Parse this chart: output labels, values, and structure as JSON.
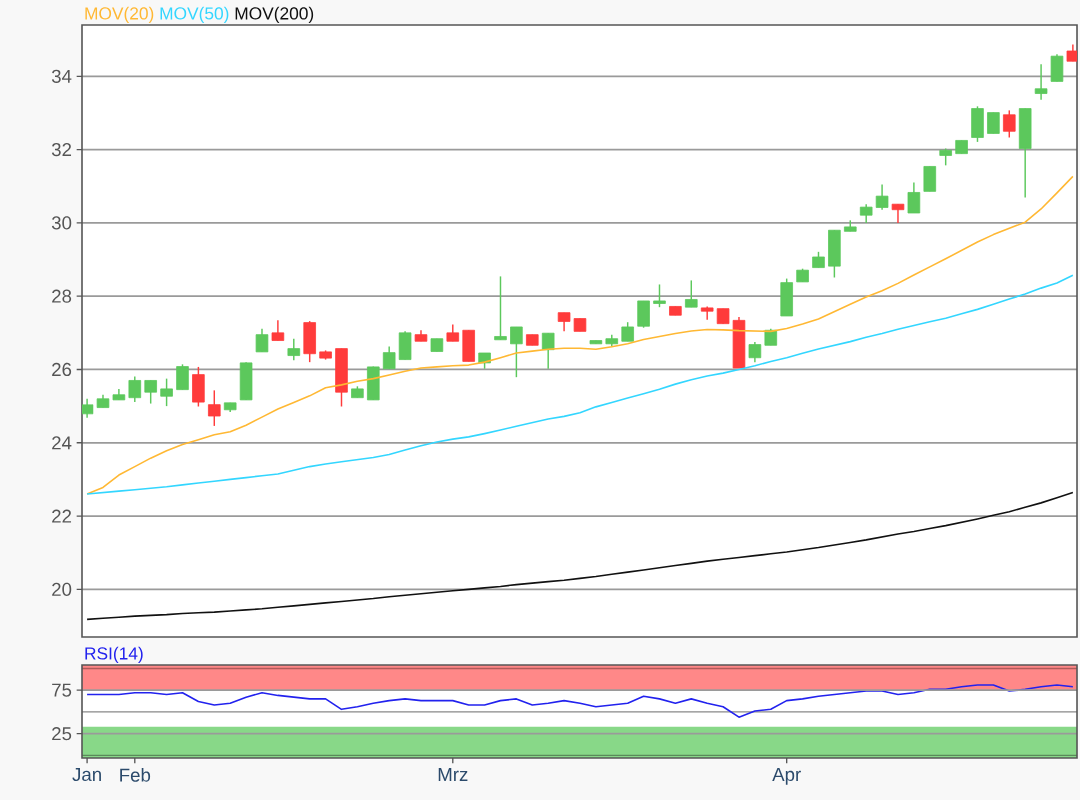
{
  "chart_data": [
    {
      "type": "candlestick",
      "categories": [
        null,
        null,
        null,
        null,
        null,
        null,
        null,
        null,
        null,
        null,
        null,
        null,
        null,
        null,
        null,
        null,
        null,
        null,
        null,
        null,
        null,
        null,
        null,
        null,
        null,
        null,
        null,
        null,
        null,
        null,
        null,
        null,
        null,
        null,
        null,
        null,
        null,
        null,
        null,
        null,
        null,
        null,
        null,
        null,
        null,
        null,
        null,
        null,
        null,
        null,
        null,
        null,
        null,
        null,
        null,
        null,
        null,
        null,
        null,
        null,
        null,
        null,
        null
      ],
      "series": [
        {
          "type": "candlestick",
          "ohlc": [
            [
              24.79,
              25.2,
              24.68,
              25.04
            ],
            [
              24.96,
              25.31,
              24.96,
              25.2
            ],
            [
              25.17,
              25.47,
              25.17,
              25.31
            ],
            [
              25.23,
              25.81,
              25.11,
              25.7
            ],
            [
              25.38,
              25.7,
              25.07,
              25.7
            ],
            [
              25.27,
              25.75,
              25.0,
              25.47
            ],
            [
              25.45,
              26.14,
              25.45,
              26.08
            ],
            [
              25.86,
              26.07,
              24.99,
              25.11
            ],
            [
              25.04,
              25.43,
              24.46,
              24.73
            ],
            [
              24.9,
              25.09,
              24.84,
              25.09
            ],
            [
              25.17,
              26.2,
              25.17,
              26.18
            ],
            [
              26.48,
              27.11,
              26.48,
              26.95
            ],
            [
              27.0,
              27.34,
              26.79,
              26.79
            ],
            [
              26.38,
              26.84,
              26.25,
              26.57
            ],
            [
              27.28,
              27.32,
              26.2,
              26.43
            ],
            [
              26.48,
              26.52,
              26.27,
              26.31
            ],
            [
              26.57,
              26.57,
              24.99,
              25.38
            ],
            [
              25.23,
              25.54,
              25.23,
              25.47
            ],
            [
              25.17,
              26.08,
              25.17,
              26.07
            ],
            [
              26.02,
              26.63,
              26.02,
              26.46
            ],
            [
              26.27,
              27.04,
              26.27,
              27.0
            ],
            [
              26.95,
              27.07,
              26.77,
              26.77
            ],
            [
              26.49,
              26.84,
              26.49,
              26.84
            ],
            [
              27.0,
              27.23,
              26.77,
              26.77
            ],
            [
              27.07,
              27.07,
              26.22,
              26.22
            ],
            [
              26.18,
              26.45,
              26.02,
              26.45
            ],
            [
              26.81,
              28.54,
              26.81,
              26.9
            ],
            [
              26.7,
              27.16,
              25.79,
              27.16
            ],
            [
              26.95,
              26.95,
              26.66,
              26.66
            ],
            [
              26.54,
              26.99,
              26.02,
              26.99
            ],
            [
              27.55,
              27.55,
              27.04,
              27.31
            ],
            [
              27.39,
              27.39,
              27.04,
              27.04
            ],
            [
              26.7,
              26.79,
              26.7,
              26.79
            ],
            [
              26.7,
              26.95,
              26.63,
              26.84
            ],
            [
              26.77,
              27.29,
              26.77,
              27.16
            ],
            [
              27.18,
              27.87,
              27.14,
              27.87
            ],
            [
              27.8,
              28.32,
              27.7,
              27.87
            ],
            [
              27.72,
              27.72,
              27.48,
              27.48
            ],
            [
              27.7,
              28.43,
              27.7,
              27.91
            ],
            [
              27.68,
              27.72,
              27.36,
              27.59
            ],
            [
              27.66,
              27.66,
              27.25,
              27.25
            ],
            [
              27.34,
              27.43,
              26.04,
              26.04
            ],
            [
              26.32,
              26.75,
              26.2,
              26.68
            ],
            [
              26.66,
              27.11,
              26.66,
              27.07
            ],
            [
              27.46,
              28.48,
              27.46,
              28.37
            ],
            [
              28.39,
              28.75,
              28.39,
              28.71
            ],
            [
              28.78,
              29.21,
              28.78,
              29.07
            ],
            [
              28.82,
              29.8,
              28.51,
              29.8
            ],
            [
              29.77,
              30.07,
              29.77,
              29.89
            ],
            [
              30.21,
              30.51,
              30.0,
              30.43
            ],
            [
              30.42,
              31.05,
              30.36,
              30.73
            ],
            [
              30.51,
              30.51,
              30.0,
              30.36
            ],
            [
              30.27,
              31.1,
              30.27,
              30.83
            ],
            [
              30.86,
              31.54,
              30.86,
              31.54
            ],
            [
              31.84,
              32.03,
              31.57,
              31.98
            ],
            [
              31.89,
              32.25,
              31.89,
              32.25
            ],
            [
              32.33,
              33.18,
              32.21,
              33.12
            ],
            [
              32.44,
              33.01,
              32.44,
              33.01
            ],
            [
              32.95,
              33.07,
              32.33,
              32.5
            ],
            [
              32.03,
              33.12,
              30.69,
              33.12
            ],
            [
              33.53,
              34.33,
              33.36,
              33.66
            ],
            [
              33.86,
              34.6,
              33.86,
              34.55
            ],
            [
              34.69,
              34.87,
              34.41,
              34.41
            ]
          ],
          "colors": [
            "#5cc85c",
            "#5cc85c",
            "#5cc85c",
            "#5cc85c",
            "#5cc85c",
            "#5cc85c",
            "#5cc85c",
            "#ff3b3b",
            "#ff3b3b",
            "#5cc85c",
            "#5cc85c",
            "#5cc85c",
            "#ff3b3b",
            "#5cc85c",
            "#ff3b3b",
            "#ff3b3b",
            "#ff3b3b",
            "#5cc85c",
            "#5cc85c",
            "#5cc85c",
            "#5cc85c",
            "#ff3b3b",
            "#5cc85c",
            "#ff3b3b",
            "#ff3b3b",
            "#5cc85c",
            "#5cc85c",
            "#5cc85c",
            "#ff3b3b",
            "#5cc85c",
            "#ff3b3b",
            "#ff3b3b",
            "#5cc85c",
            "#5cc85c",
            "#5cc85c",
            "#5cc85c",
            "#5cc85c",
            "#ff3b3b",
            "#5cc85c",
            "#ff3b3b",
            "#ff3b3b",
            "#ff3b3b",
            "#5cc85c",
            "#5cc85c",
            "#5cc85c",
            "#5cc85c",
            "#5cc85c",
            "#5cc85c",
            "#5cc85c",
            "#5cc85c",
            "#5cc85c",
            "#ff3b3b",
            "#5cc85c",
            "#5cc85c",
            "#5cc85c",
            "#5cc85c",
            "#5cc85c",
            "#5cc85c",
            "#ff3b3b",
            "#5cc85c",
            "#5cc85c",
            "#5cc85c",
            "#ff3b3b"
          ]
        },
        {
          "type": "line",
          "name": "MOV(20)",
          "color": "#ffb833",
          "values": [
            22.6,
            22.78,
            23.12,
            23.35,
            23.58,
            23.78,
            23.95,
            24.08,
            24.22,
            24.3,
            24.48,
            24.7,
            24.92,
            25.1,
            25.28,
            25.5,
            25.58,
            25.68,
            25.75,
            25.85,
            25.95,
            26.04,
            26.07,
            26.1,
            26.12,
            26.2,
            26.32,
            26.45,
            26.5,
            26.55,
            26.58,
            26.58,
            26.55,
            26.62,
            26.7,
            26.82,
            26.9,
            26.98,
            27.05,
            27.09,
            27.08,
            27.06,
            27.05,
            27.04,
            27.12,
            27.24,
            27.38,
            27.58,
            27.78,
            27.98,
            28.15,
            28.35,
            28.58,
            28.8,
            29.02,
            29.25,
            29.48,
            29.68,
            29.85,
            30.02,
            30.38,
            30.82,
            31.27
          ]
        },
        {
          "type": "line",
          "name": "MOV(50)",
          "color": "#33d6ff",
          "values": [
            22.6,
            22.64,
            22.68,
            22.72,
            22.76,
            22.8,
            22.85,
            22.9,
            22.95,
            23.0,
            23.05,
            23.1,
            23.15,
            23.25,
            23.35,
            23.42,
            23.48,
            23.54,
            23.6,
            23.68,
            23.8,
            23.92,
            24.02,
            24.1,
            24.16,
            24.25,
            24.35,
            24.45,
            24.55,
            24.65,
            24.72,
            24.82,
            24.98,
            25.1,
            25.22,
            25.34,
            25.46,
            25.6,
            25.72,
            25.82,
            25.9,
            26.0,
            26.1,
            26.22,
            26.32,
            26.44,
            26.56,
            26.66,
            26.76,
            26.88,
            26.98,
            27.1,
            27.2,
            27.3,
            27.4,
            27.52,
            27.64,
            27.78,
            27.92,
            28.06,
            28.22,
            28.36,
            28.57
          ]
        },
        {
          "type": "line",
          "name": "MOV(200)",
          "color": "#111111",
          "values": [
            19.18,
            19.21,
            19.24,
            19.27,
            19.29,
            19.31,
            19.34,
            19.36,
            19.38,
            19.41,
            19.44,
            19.47,
            19.51,
            19.55,
            19.59,
            19.63,
            19.67,
            19.71,
            19.75,
            19.8,
            19.84,
            19.88,
            19.92,
            19.96,
            20.0,
            20.04,
            20.08,
            20.13,
            20.17,
            20.21,
            20.25,
            20.3,
            20.35,
            20.41,
            20.47,
            20.53,
            20.59,
            20.65,
            20.71,
            20.77,
            20.82,
            20.87,
            20.92,
            20.97,
            21.02,
            21.08,
            21.14,
            21.21,
            21.28,
            21.35,
            21.43,
            21.51,
            21.58,
            21.66,
            21.74,
            21.83,
            21.92,
            22.02,
            22.12,
            22.24,
            22.36,
            22.5,
            22.64
          ]
        }
      ],
      "ylim": [
        18.7,
        35.4
      ],
      "yticks": [
        20,
        22,
        24,
        26,
        28,
        30,
        32,
        34
      ],
      "grid": "y",
      "tick_labels": "y"
    },
    {
      "type": "line",
      "categories": [
        "Jan",
        null,
        null,
        "Feb",
        null,
        null,
        null,
        null,
        null,
        null,
        null,
        null,
        null,
        null,
        null,
        null,
        null,
        null,
        null,
        null,
        null,
        null,
        null,
        "Mrz",
        null,
        null,
        null,
        null,
        null,
        null,
        null,
        null,
        null,
        null,
        null,
        null,
        null,
        null,
        null,
        null,
        null,
        null,
        null,
        null,
        "Apr",
        null,
        null,
        null,
        null,
        null,
        null,
        null,
        null,
        null,
        null,
        null,
        null,
        null,
        null,
        null,
        null,
        null,
        null
      ],
      "series": [
        {
          "name": "RSI(14)",
          "color": "#2222ee",
          "values": [
            70,
            70,
            70,
            72,
            72,
            70,
            72,
            62,
            58,
            60,
            67,
            72,
            69,
            67,
            65,
            65,
            53,
            56,
            60,
            63,
            65,
            63,
            63,
            63,
            58,
            58,
            63,
            65,
            58,
            60,
            63,
            60,
            56,
            58,
            60,
            68,
            65,
            60,
            65,
            60,
            56,
            44,
            51,
            53,
            63,
            65,
            68,
            70,
            72,
            74,
            74,
            70,
            72,
            76,
            76,
            79,
            81,
            81,
            74,
            76,
            79,
            81,
            79
          ]
        }
      ],
      "ylim": [
        -3,
        104
      ],
      "yticks": [
        25,
        75
      ],
      "grid": "y",
      "bands": [
        {
          "axis": "y",
          "from": 75,
          "to": 104,
          "color": "#ff8888"
        },
        {
          "axis": "y",
          "from": -3,
          "to": 33,
          "color": "#88d888"
        }
      ],
      "ref_lines": [
        {
          "axis": "y",
          "value": 0,
          "color": "#5a8a5a"
        },
        {
          "axis": "y",
          "value": 50,
          "color": "#888888"
        },
        {
          "axis": "y",
          "value": 100,
          "color": "#b05a5a"
        }
      ]
    }
  ]
}
